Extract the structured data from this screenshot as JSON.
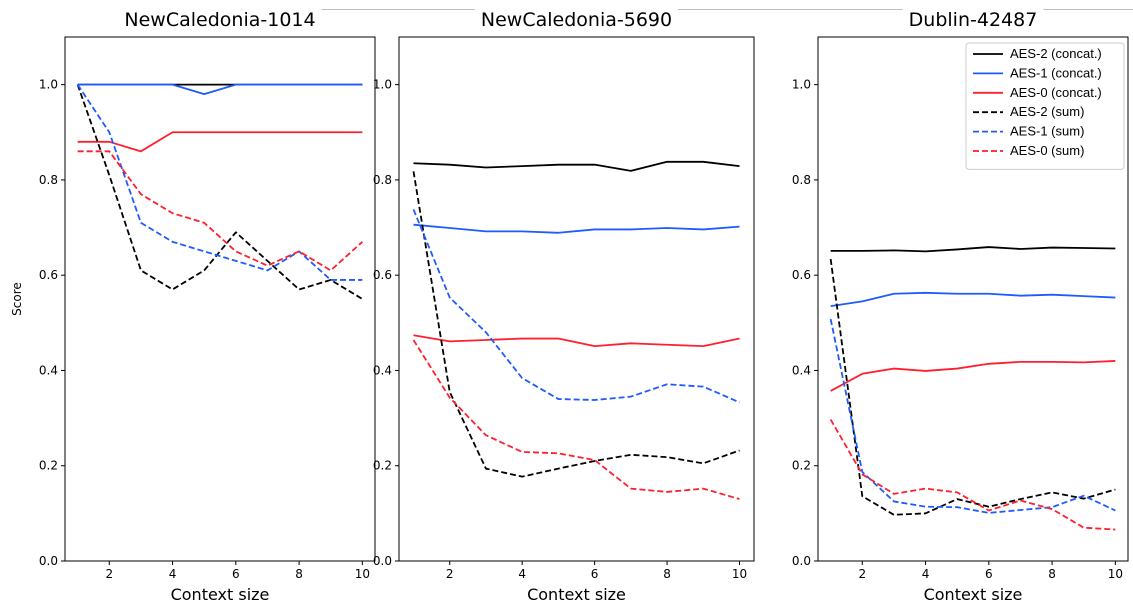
{
  "chart_data": [
    {
      "type": "line",
      "title": "NewCaledonia-1014",
      "xlabel": "Context size",
      "ylabel": "Score",
      "xlim": [
        0.6,
        10.4
      ],
      "ylim": [
        0.0,
        1.1
      ],
      "xticks": [
        2,
        4,
        6,
        8,
        10
      ],
      "xtick_labels": [
        "2",
        "4",
        "6",
        "8",
        "10"
      ],
      "yticks": [
        0.0,
        0.2,
        0.4,
        0.6,
        0.8,
        1.0
      ],
      "ytick_labels": [
        "0.0",
        "0.2",
        "0.4",
        "0.6",
        "0.8",
        "1.0"
      ],
      "x": [
        1,
        2,
        3,
        4,
        5,
        6,
        7,
        8,
        9,
        10
      ],
      "series": [
        {
          "name": "AES-2 (concat.)",
          "color": "#000000",
          "dash": "solid",
          "values": [
            1.0,
            1.0,
            1.0,
            1.0,
            1.0,
            1.0,
            1.0,
            1.0,
            1.0,
            1.0
          ]
        },
        {
          "name": "AES-1 (concat.)",
          "color": "#1f5bff",
          "dash": "solid",
          "values": [
            1.0,
            1.0,
            1.0,
            1.0,
            0.98,
            1.0,
            1.0,
            1.0,
            1.0,
            1.0
          ]
        },
        {
          "name": "AES-0 (concat.)",
          "color": "#ff1f2e",
          "dash": "solid",
          "values": [
            0.88,
            0.88,
            0.86,
            0.9,
            0.9,
            0.9,
            0.9,
            0.9,
            0.9,
            0.9
          ]
        },
        {
          "name": "AES-2 (sum)",
          "color": "#000000",
          "dash": "dashed",
          "values": [
            1.0,
            0.81,
            0.61,
            0.57,
            0.61,
            0.69,
            0.63,
            0.57,
            0.59,
            0.55
          ]
        },
        {
          "name": "AES-1 (sum)",
          "color": "#1f5bff",
          "dash": "dashed",
          "values": [
            1.0,
            0.9,
            0.71,
            0.67,
            0.65,
            0.63,
            0.61,
            0.65,
            0.59,
            0.59
          ]
        },
        {
          "name": "AES-0 (sum)",
          "color": "#ff1f2e",
          "dash": "dashed",
          "values": [
            0.86,
            0.86,
            0.77,
            0.73,
            0.71,
            0.65,
            0.62,
            0.65,
            0.61,
            0.67
          ]
        }
      ]
    },
    {
      "type": "line",
      "title": "NewCaledonia-5690",
      "xlabel": "Context size",
      "ylabel": "",
      "xlim": [
        0.6,
        10.4
      ],
      "ylim": [
        0.0,
        1.1
      ],
      "xticks": [
        2,
        4,
        6,
        8,
        10
      ],
      "xtick_labels": [
        "2",
        "4",
        "6",
        "8",
        "10"
      ],
      "yticks": [
        0.0,
        0.2,
        0.4,
        0.6,
        0.8,
        1.0
      ],
      "ytick_labels": [
        "0.0",
        "0.2",
        "0.4",
        "0.6",
        "0.8",
        "1.0"
      ],
      "x": [
        1,
        2,
        3,
        4,
        5,
        6,
        7,
        8,
        9,
        10
      ],
      "series": [
        {
          "name": "AES-2 (concat.)",
          "color": "#000000",
          "dash": "solid",
          "values": [
            0.835,
            0.832,
            0.826,
            0.829,
            0.832,
            0.832,
            0.819,
            0.838,
            0.838,
            0.829
          ]
        },
        {
          "name": "AES-1 (concat.)",
          "color": "#1f5bff",
          "dash": "solid",
          "values": [
            0.706,
            0.699,
            0.692,
            0.692,
            0.689,
            0.696,
            0.696,
            0.699,
            0.696,
            0.702
          ]
        },
        {
          "name": "AES-0 (concat.)",
          "color": "#ff1f2e",
          "dash": "solid",
          "values": [
            0.474,
            0.461,
            0.464,
            0.467,
            0.467,
            0.451,
            0.457,
            0.454,
            0.451,
            0.467
          ]
        },
        {
          "name": "AES-2 (sum)",
          "color": "#000000",
          "dash": "dashed",
          "values": [
            0.818,
            0.355,
            0.194,
            0.177,
            0.194,
            0.21,
            0.223,
            0.218,
            0.205,
            0.232
          ]
        },
        {
          "name": "AES-1 (sum)",
          "color": "#1f5bff",
          "dash": "dashed",
          "values": [
            0.738,
            0.553,
            0.48,
            0.384,
            0.34,
            0.338,
            0.345,
            0.371,
            0.366,
            0.333
          ]
        },
        {
          "name": "AES-0 (sum)",
          "color": "#ff1f2e",
          "dash": "dashed",
          "values": [
            0.464,
            0.343,
            0.264,
            0.229,
            0.226,
            0.212,
            0.152,
            0.145,
            0.152,
            0.13
          ]
        }
      ]
    },
    {
      "type": "line",
      "title": "Dublin-42487",
      "xlabel": "Context size",
      "ylabel": "",
      "xlim": [
        0.6,
        10.4
      ],
      "ylim": [
        0.0,
        1.1
      ],
      "xticks": [
        2,
        4,
        6,
        8,
        10
      ],
      "xtick_labels": [
        "2",
        "4",
        "6",
        "8",
        "10"
      ],
      "yticks": [
        0.0,
        0.2,
        0.4,
        0.6,
        0.8,
        1.0
      ],
      "ytick_labels": [
        "0.0",
        "0.2",
        "0.4",
        "0.6",
        "0.8",
        "1.0"
      ],
      "x": [
        1,
        2,
        3,
        4,
        5,
        6,
        7,
        8,
        9,
        10
      ],
      "legend_position": "top-right",
      "series": [
        {
          "name": "AES-2 (concat.)",
          "color": "#000000",
          "dash": "solid",
          "values": [
            0.651,
            0.651,
            0.652,
            0.65,
            0.654,
            0.659,
            0.655,
            0.658,
            0.657,
            0.656
          ]
        },
        {
          "name": "AES-1 (concat.)",
          "color": "#1f5bff",
          "dash": "solid",
          "values": [
            0.535,
            0.545,
            0.561,
            0.563,
            0.561,
            0.561,
            0.557,
            0.559,
            0.556,
            0.553
          ]
        },
        {
          "name": "AES-0 (concat.)",
          "color": "#ff1f2e",
          "dash": "solid",
          "values": [
            0.357,
            0.393,
            0.404,
            0.399,
            0.404,
            0.414,
            0.418,
            0.418,
            0.417,
            0.42
          ]
        },
        {
          "name": "AES-2 (sum)",
          "color": "#000000",
          "dash": "dashed",
          "values": [
            0.634,
            0.136,
            0.097,
            0.1,
            0.13,
            0.114,
            0.13,
            0.144,
            0.131,
            0.15
          ]
        },
        {
          "name": "AES-1 (sum)",
          "color": "#1f5bff",
          "dash": "dashed",
          "values": [
            0.508,
            0.187,
            0.125,
            0.114,
            0.113,
            0.101,
            0.107,
            0.113,
            0.137,
            0.106
          ]
        },
        {
          "name": "AES-0 (sum)",
          "color": "#ff1f2e",
          "dash": "dashed",
          "values": [
            0.297,
            0.182,
            0.141,
            0.152,
            0.144,
            0.106,
            0.127,
            0.109,
            0.07,
            0.066
          ]
        }
      ]
    }
  ]
}
